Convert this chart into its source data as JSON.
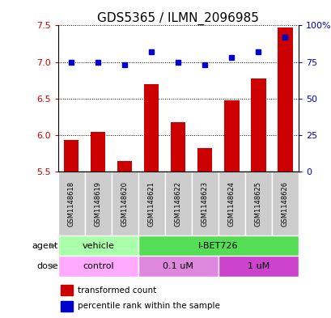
{
  "title": "GDS5365 / ILMN_2096985",
  "samples": [
    "GSM1148618",
    "GSM1148619",
    "GSM1148620",
    "GSM1148621",
    "GSM1148622",
    "GSM1148623",
    "GSM1148624",
    "GSM1148625",
    "GSM1148626"
  ],
  "transformed_count": [
    5.93,
    6.05,
    5.65,
    6.7,
    6.18,
    5.82,
    6.48,
    6.78,
    7.47
  ],
  "percentile_rank": [
    75,
    75,
    73,
    82,
    75,
    73,
    78,
    82,
    92
  ],
  "bar_color": "#cc0000",
  "dot_color": "#0000cc",
  "ylim_left": [
    5.5,
    7.5
  ],
  "ylim_right": [
    0,
    100
  ],
  "yticks_left": [
    5.5,
    6.0,
    6.5,
    7.0,
    7.5
  ],
  "yticks_right": [
    0,
    25,
    50,
    75,
    100
  ],
  "ytick_labels_right": [
    "0",
    "25",
    "50",
    "75",
    "100%"
  ],
  "agent_groups": [
    {
      "label": "vehicle",
      "start": 0,
      "end": 3,
      "color": "#aaffaa"
    },
    {
      "label": "I-BET726",
      "start": 3,
      "end": 9,
      "color": "#55dd55"
    }
  ],
  "dose_groups": [
    {
      "label": "control",
      "start": 0,
      "end": 3,
      "color": "#ffaaff"
    },
    {
      "label": "0.1 uM",
      "start": 3,
      "end": 6,
      "color": "#dd88dd"
    },
    {
      "label": "1 uM",
      "start": 6,
      "end": 9,
      "color": "#cc44cc"
    }
  ],
  "legend_bar_label": "transformed count",
  "legend_dot_label": "percentile rank within the sample",
  "agent_label": "agent",
  "dose_label": "dose",
  "bar_width": 0.55,
  "grid_color": "#000000",
  "sample_box_color": "#cccccc",
  "title_fontsize": 11,
  "tick_fontsize": 8,
  "label_fontsize": 8,
  "row_label_fontsize": 8
}
